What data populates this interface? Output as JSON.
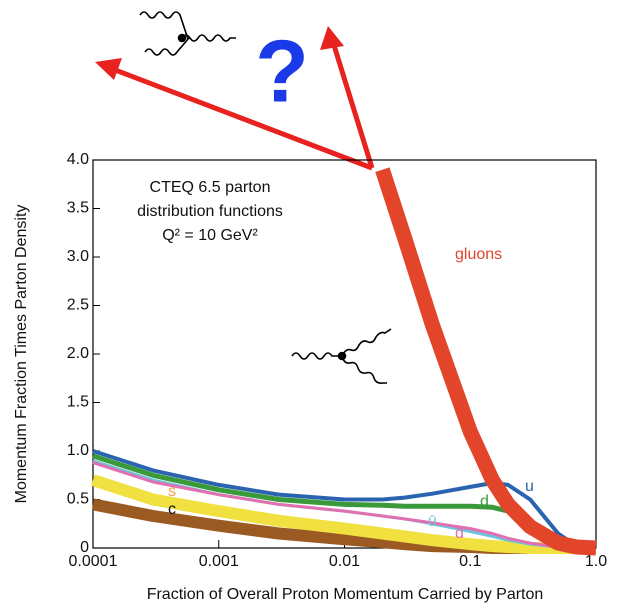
{
  "chart_data": {
    "type": "line",
    "annotations": [
      "CTEQ 6.5 parton",
      "distribution functions",
      "Q² = 10 GeV²",
      "?"
    ],
    "xlabel": "Fraction of Overall Proton Momentum Carried by Parton",
    "ylabel": "Momentum Fraction Times Parton Density",
    "log_x": true,
    "xlim": [
      0.0001,
      1
    ],
    "xticks": [
      0.0001,
      0.001,
      0.01,
      0.1,
      {
        "value": 1,
        "label": "1.0"
      }
    ],
    "ylim": [
      0,
      4
    ],
    "yticks": [
      0,
      0.5,
      {
        "value": 1,
        "label": "1.0"
      },
      1.5,
      {
        "value": 2,
        "label": "2.0"
      },
      2.5,
      {
        "value": 3,
        "label": "3.0"
      },
      3.5,
      {
        "value": 4,
        "label": "4.0"
      }
    ],
    "x": [
      0.0001,
      0.0003,
      0.001,
      0.003,
      0.01,
      0.02,
      0.03,
      0.05,
      0.1,
      0.15,
      0.2,
      0.3,
      0.5,
      0.7,
      1
    ],
    "series": [
      {
        "name": "c",
        "color": "#9a5a22",
        "values": [
          0.45,
          0.33,
          0.23,
          0.15,
          0.09,
          0.06,
          0.04,
          0.02,
          0.01,
          0,
          0,
          0,
          0,
          0,
          0
        ]
      },
      {
        "name": "s",
        "color": "#f0e040",
        "values": [
          0.7,
          0.5,
          0.38,
          0.28,
          0.2,
          0.15,
          0.12,
          0.08,
          0.04,
          0.02,
          0.01,
          0,
          0,
          0,
          0
        ]
      },
      {
        "name": "ū",
        "color": "#6cc4dc",
        "values": [
          0.9,
          0.7,
          0.55,
          0.45,
          0.38,
          0.33,
          0.3,
          0.25,
          0.17,
          0.12,
          0.08,
          0.04,
          0.01,
          0,
          0
        ]
      },
      {
        "name": "d̄",
        "color": "#e070b0",
        "values": [
          0.88,
          0.68,
          0.55,
          0.45,
          0.38,
          0.33,
          0.3,
          0.26,
          0.2,
          0.15,
          0.1,
          0.05,
          0.01,
          0,
          0
        ]
      },
      {
        "name": "d",
        "color": "#3a9a3a",
        "values": [
          0.95,
          0.75,
          0.6,
          0.5,
          0.45,
          0.44,
          0.43,
          0.43,
          0.43,
          0.42,
          0.38,
          0.28,
          0.06,
          0.01,
          0
        ]
      },
      {
        "name": "u",
        "color": "#2a63b0",
        "values": [
          1.0,
          0.8,
          0.65,
          0.55,
          0.5,
          0.5,
          0.52,
          0.56,
          0.63,
          0.67,
          0.65,
          0.5,
          0.15,
          0.02,
          0
        ]
      },
      {
        "name": "gluons",
        "color": "#e2452a",
        "values": [
          null,
          null,
          null,
          null,
          null,
          3.9,
          3.2,
          2.3,
          1.2,
          0.7,
          0.45,
          0.22,
          0.05,
          0.01,
          0
        ]
      }
    ]
  }
}
